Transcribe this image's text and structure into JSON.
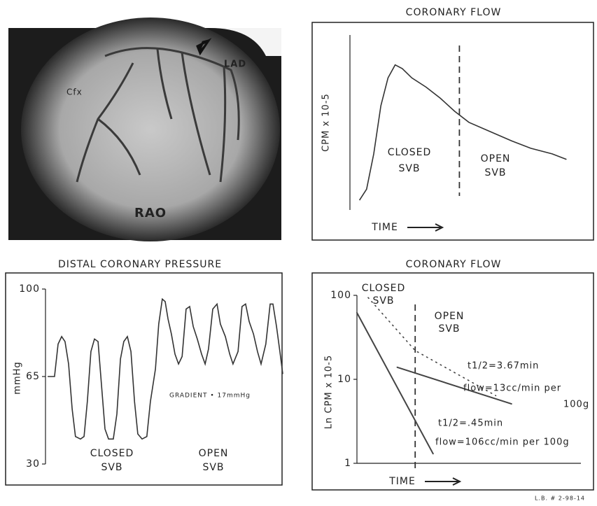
{
  "image": {
    "labels": [
      "LAD",
      "Cfx",
      "RAO"
    ]
  },
  "footer": "L.B. # 2-98-14",
  "chart_data": [
    {
      "type": "line",
      "title": "CORONARY FLOW",
      "y_label": "CPM x 10-5",
      "x_label": "TIME",
      "annotations": [
        "CLOSED",
        "SVB",
        "OPEN",
        "SVB"
      ],
      "xlim": [
        0,
        100
      ],
      "ylim": [
        0,
        100
      ],
      "vline": 46,
      "color": "#333333",
      "x": [
        4,
        7,
        10,
        13,
        16,
        19,
        22,
        26,
        32,
        38,
        44,
        50,
        59,
        68,
        76,
        85,
        91
      ],
      "values": [
        9,
        15,
        34,
        60,
        75,
        82,
        80,
        75,
        70,
        64,
        57,
        51,
        46,
        41,
        37,
        34,
        31
      ]
    },
    {
      "type": "line",
      "title": "DISTAL CORONARY PRESSURE",
      "y_label": "mmHg",
      "annotations": [
        "GRADIENT • 17mmHg",
        "CLOSED",
        "SVB",
        "OPEN",
        "SVB"
      ],
      "xlim": [
        0,
        100
      ],
      "ylim": [
        30,
        100
      ],
      "yticks": [
        30,
        65,
        100
      ],
      "color": "#333333",
      "x": [
        0.9,
        3.8,
        5.3,
        6.8,
        8.2,
        9.7,
        11.2,
        12.6,
        14.7,
        16.2,
        17.6,
        19.1,
        20.6,
        22.1,
        23.5,
        25,
        26.5,
        28.5,
        30,
        31.5,
        32.9,
        34.4,
        35.9,
        37.4,
        38.8,
        40.6,
        42.6,
        44.1,
        46.2,
        47.6,
        49.1,
        50.3,
        51.5,
        52.9,
        54.4,
        55.9,
        57.4,
        59.1,
        60.6,
        62.1,
        63.8,
        65.6,
        67.1,
        68.5,
        70.3,
        72.1,
        73.5,
        75.6,
        77.4,
        78.8,
        80.9,
        82.6,
        84.1,
        85.6,
        87.4,
        89.1,
        90.6,
        92.6,
        94.4,
        95.6,
        97.1,
        98.5,
        99.7
      ],
      "values": [
        65,
        65,
        78,
        81,
        79,
        70,
        52,
        41,
        40,
        41,
        55,
        75,
        80,
        79,
        62,
        44,
        40,
        40,
        50,
        72,
        79,
        81,
        75,
        55,
        42,
        40,
        41,
        55,
        68,
        86,
        96,
        95,
        88,
        82,
        74,
        70,
        73,
        92,
        93,
        85,
        80,
        74,
        70,
        76,
        92,
        94,
        86,
        81,
        74,
        70,
        75,
        93,
        94,
        87,
        82,
        75,
        70,
        78,
        94,
        94,
        85,
        75,
        66
      ]
    },
    {
      "type": "log-line",
      "title": "CORONARY FLOW",
      "y_label": "Ln  CPM x 10-5",
      "x_label": "TIME",
      "annotations": [
        "CLOSED",
        "SVB",
        "OPEN",
        "SVB",
        "t1/2=3.67min",
        "flow=13cc/min per",
        "100g",
        "t1/2=.45min",
        "flow=106cc/min per 100g"
      ],
      "xlim": [
        0,
        100
      ],
      "ylim": [
        1,
        100
      ],
      "yticks": [
        1,
        10,
        100
      ],
      "log_y": true,
      "vline": 26,
      "series": [
        {
          "style": "solid",
          "color": "#444444",
          "x": [
            0,
            34
          ],
          "values": [
            62,
            1.3
          ]
        },
        {
          "style": "solid",
          "color": "#444444",
          "x": [
            18,
            69
          ],
          "values": [
            13.9,
            5.1
          ]
        },
        {
          "style": "dotted",
          "color": "#444444",
          "x": [
            5,
            26,
            62
          ],
          "values": [
            94,
            22,
            6.4
          ]
        }
      ]
    }
  ]
}
